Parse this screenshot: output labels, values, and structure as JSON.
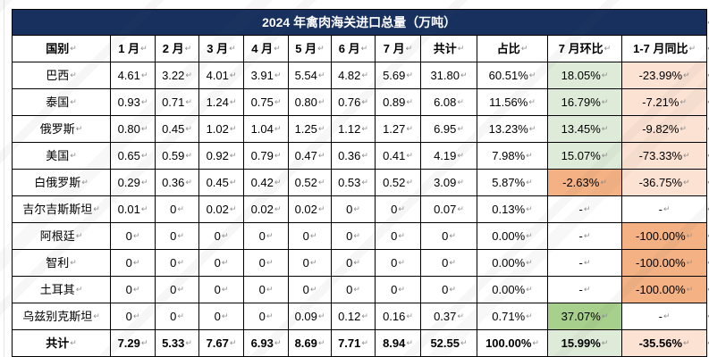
{
  "page": {
    "title_text": "2024 年禽肉海关进口总量（万吨）",
    "marker": "↵"
  },
  "colors": {
    "title_bg": "#17305e",
    "title_text": "#ffffff",
    "border": "#000000",
    "marker": "#8f8f8f",
    "palette": {
      "green_light": "#deebd8",
      "green_dark": "#a8d08d",
      "orange": "#f4b183",
      "salmon": "#fbe2d3",
      "none": "#ffffff"
    }
  },
  "table": {
    "columns": [
      "国别",
      "1 月",
      "2 月",
      "3 月",
      "4 月",
      "5 月",
      "6 月",
      "7 月",
      "共计",
      "占比",
      "7 月环比",
      "1-7 月同比"
    ],
    "rows": [
      {
        "name": "巴西",
        "cells": [
          "4.61",
          "3.22",
          "4.01",
          "3.91",
          "5.54",
          "4.82",
          "5.69",
          "31.80",
          "60.51%",
          "18.05%",
          "-23.99%"
        ],
        "mom_bg": "green_light",
        "yoy_bg": "salmon",
        "bold": false
      },
      {
        "name": "泰国",
        "cells": [
          "0.93",
          "0.71",
          "1.24",
          "0.75",
          "0.80",
          "0.76",
          "0.89",
          "6.08",
          "11.56%",
          "16.79%",
          "-7.21%"
        ],
        "mom_bg": "green_light",
        "yoy_bg": "salmon",
        "bold": false
      },
      {
        "name": "俄罗斯",
        "cells": [
          "0.80",
          "0.45",
          "1.02",
          "1.04",
          "1.25",
          "1.12",
          "1.27",
          "6.95",
          "13.23%",
          "13.45%",
          "-9.82%"
        ],
        "mom_bg": "green_light",
        "yoy_bg": "salmon",
        "bold": false
      },
      {
        "name": "美国",
        "cells": [
          "0.65",
          "0.59",
          "0.92",
          "0.79",
          "0.47",
          "0.36",
          "0.41",
          "4.19",
          "7.98%",
          "15.07%",
          "-73.33%"
        ],
        "mom_bg": "green_light",
        "yoy_bg": "salmon",
        "bold": false
      },
      {
        "name": "白俄罗斯",
        "cells": [
          "0.29",
          "0.36",
          "0.45",
          "0.42",
          "0.52",
          "0.53",
          "0.52",
          "3.09",
          "5.87%",
          "-2.63%",
          "-36.75%"
        ],
        "mom_bg": "orange",
        "yoy_bg": "salmon",
        "bold": false
      },
      {
        "name": "吉尔吉斯斯坦",
        "cells": [
          "0.01",
          "0",
          "0.02",
          "0.02",
          "0.02",
          "0",
          "0",
          "0.07",
          "0.13%",
          "-",
          "-"
        ],
        "mom_bg": "none",
        "yoy_bg": "none",
        "bold": false
      },
      {
        "name": "阿根廷",
        "cells": [
          "0",
          "0",
          "0",
          "0",
          "0",
          "0",
          "0",
          "0",
          "0.00%",
          "-",
          "-100.00%"
        ],
        "mom_bg": "none",
        "yoy_bg": "orange",
        "bold": false
      },
      {
        "name": "智利",
        "cells": [
          "0",
          "0",
          "0",
          "0",
          "0",
          "0",
          "0",
          "0",
          "0.00%",
          "-",
          "-100.00%"
        ],
        "mom_bg": "none",
        "yoy_bg": "orange",
        "bold": false
      },
      {
        "name": "土耳其",
        "cells": [
          "0",
          "0",
          "0",
          "0",
          "0",
          "0",
          "0",
          "0",
          "0.00%",
          "-",
          "-100.00%"
        ],
        "mom_bg": "none",
        "yoy_bg": "orange",
        "bold": false
      },
      {
        "name": "乌兹别克斯坦",
        "cells": [
          "0",
          "0",
          "0",
          "0",
          "0.09",
          "0.12",
          "0.16",
          "0.37",
          "0.71%",
          "37.07%",
          "-"
        ],
        "mom_bg": "green_dark",
        "yoy_bg": "none",
        "bold": false
      },
      {
        "name": "共计",
        "cells": [
          "7.29",
          "5.33",
          "7.67",
          "6.93",
          "8.69",
          "7.71",
          "8.94",
          "52.55",
          "100.00%",
          "15.99%",
          "-35.56%"
        ],
        "mom_bg": "green_light",
        "yoy_bg": "salmon",
        "bold": true
      }
    ]
  }
}
